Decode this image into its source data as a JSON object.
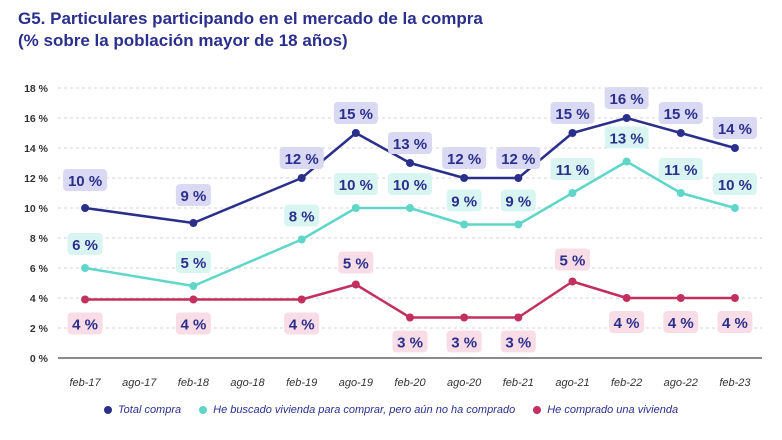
{
  "title": {
    "line1": "G5. Particulares participando en el mercado de la compra",
    "line2": "(% sobre la población mayor de 18 años)"
  },
  "chart_data": {
    "type": "line",
    "categories": [
      "feb-17",
      "ago-17",
      "feb-18",
      "ago-18",
      "feb-19",
      "ago-19",
      "feb-20",
      "ago-20",
      "feb-21",
      "ago-21",
      "feb-22",
      "ago-22",
      "feb-23"
    ],
    "ylim": [
      0,
      18
    ],
    "yticks": [
      "0 %",
      "2 %",
      "4 %",
      "6 %",
      "8 %",
      "10 %",
      "12 %",
      "14 %",
      "16 %",
      "18 %"
    ],
    "grid": true,
    "legend_position": "bottom",
    "series": [
      {
        "name": "Total compra",
        "color": "#2b2f8c",
        "label_bg": "#d9d9f3",
        "points": [
          [
            0,
            10
          ],
          [
            2,
            9
          ],
          [
            4,
            12
          ],
          [
            5,
            15
          ],
          [
            6,
            13
          ],
          [
            7,
            12
          ],
          [
            8,
            12
          ],
          [
            9,
            15
          ],
          [
            10,
            16
          ],
          [
            11,
            15
          ],
          [
            12,
            14
          ]
        ],
        "labels": [
          "10 %",
          "9 %",
          "12 %",
          "15 %",
          "13 %",
          "12 %",
          "12 %",
          "15 %",
          "16 %",
          "15 %",
          "14 %"
        ]
      },
      {
        "name": "He buscado vivienda para comprar, pero aún no ha comprado",
        "color": "#5fd6c8",
        "label_bg": "#d8f5f2",
        "points": [
          [
            0,
            6
          ],
          [
            2,
            4.8
          ],
          [
            4,
            7.9
          ],
          [
            5,
            10
          ],
          [
            6,
            10
          ],
          [
            7,
            8.9
          ],
          [
            8,
            8.9
          ],
          [
            9,
            11
          ],
          [
            10,
            13.1
          ],
          [
            11,
            11
          ],
          [
            12,
            10
          ]
        ],
        "labels": [
          "6 %",
          "5 %",
          "8 %",
          "10 %",
          "10 %",
          "9 %",
          "9 %",
          "11 %",
          "13 %",
          "11 %",
          "10 %"
        ]
      },
      {
        "name": "He comprado una vivienda",
        "color": "#c2305f",
        "label_bg": "#f8dce6",
        "points": [
          [
            0,
            3.9
          ],
          [
            2,
            3.9
          ],
          [
            4,
            3.9
          ],
          [
            5,
            4.9
          ],
          [
            6,
            2.7
          ],
          [
            7,
            2.7
          ],
          [
            8,
            2.7
          ],
          [
            9,
            5.1
          ],
          [
            10,
            4
          ],
          [
            11,
            4
          ],
          [
            12,
            4
          ]
        ],
        "labels": [
          "4 %",
          "4 %",
          "4 %",
          "5 %",
          "3 %",
          "3 %",
          "3 %",
          "5 %",
          "4 %",
          "4 %",
          "4 %"
        ]
      }
    ]
  }
}
